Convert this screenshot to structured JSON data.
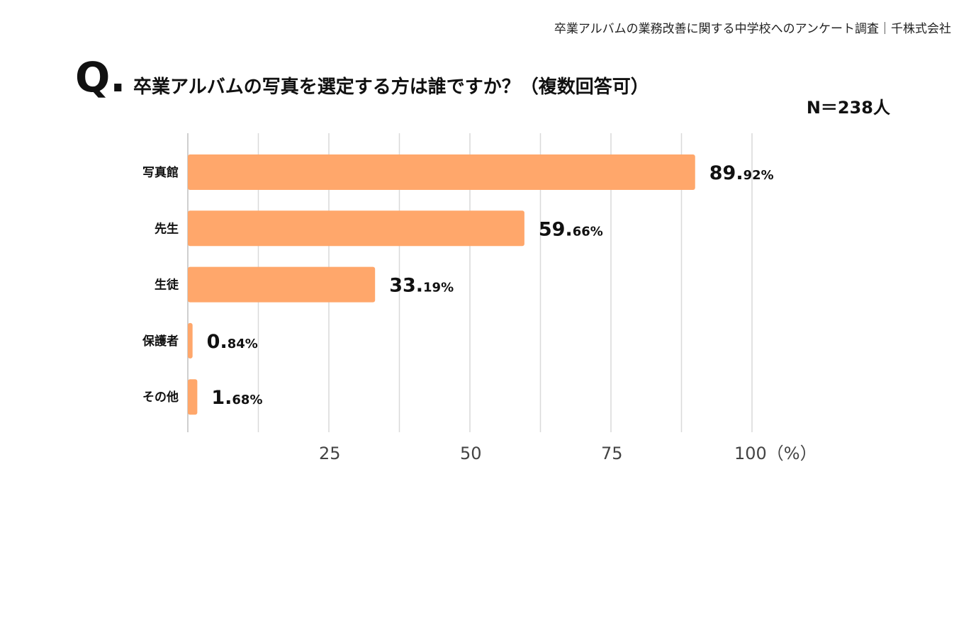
{
  "header": {
    "caption": "卒業アルバムの業務改善に関する中学校へのアンケート調査｜千株式会社"
  },
  "question": {
    "mark": "Q.",
    "text": "卒業アルバムの写真を選定する方は誰ですか？（複数回答可）",
    "sample_size": "N＝238人"
  },
  "colors": {
    "bar": "#FFA76B",
    "grid": "#d9d9d9",
    "axis": "#bfbfbf"
  },
  "chart_data": {
    "type": "bar",
    "orientation": "horizontal",
    "categories": [
      "写真館",
      "先生",
      "生徒",
      "保護者",
      "その他"
    ],
    "values": [
      89.92,
      59.66,
      33.19,
      0.84,
      1.68
    ],
    "value_labels": [
      {
        "int": "89.",
        "dec": "92%"
      },
      {
        "int": "59.",
        "dec": "66%"
      },
      {
        "int": "33.",
        "dec": "19%"
      },
      {
        "int": "0.",
        "dec": "84%"
      },
      {
        "int": "1.",
        "dec": "68%"
      }
    ],
    "xlim": [
      0,
      100
    ],
    "x_ticks": [
      25,
      50,
      75,
      100
    ],
    "x_tick_labels": [
      "25",
      "50",
      "75",
      "100（%）"
    ],
    "grid": true
  }
}
